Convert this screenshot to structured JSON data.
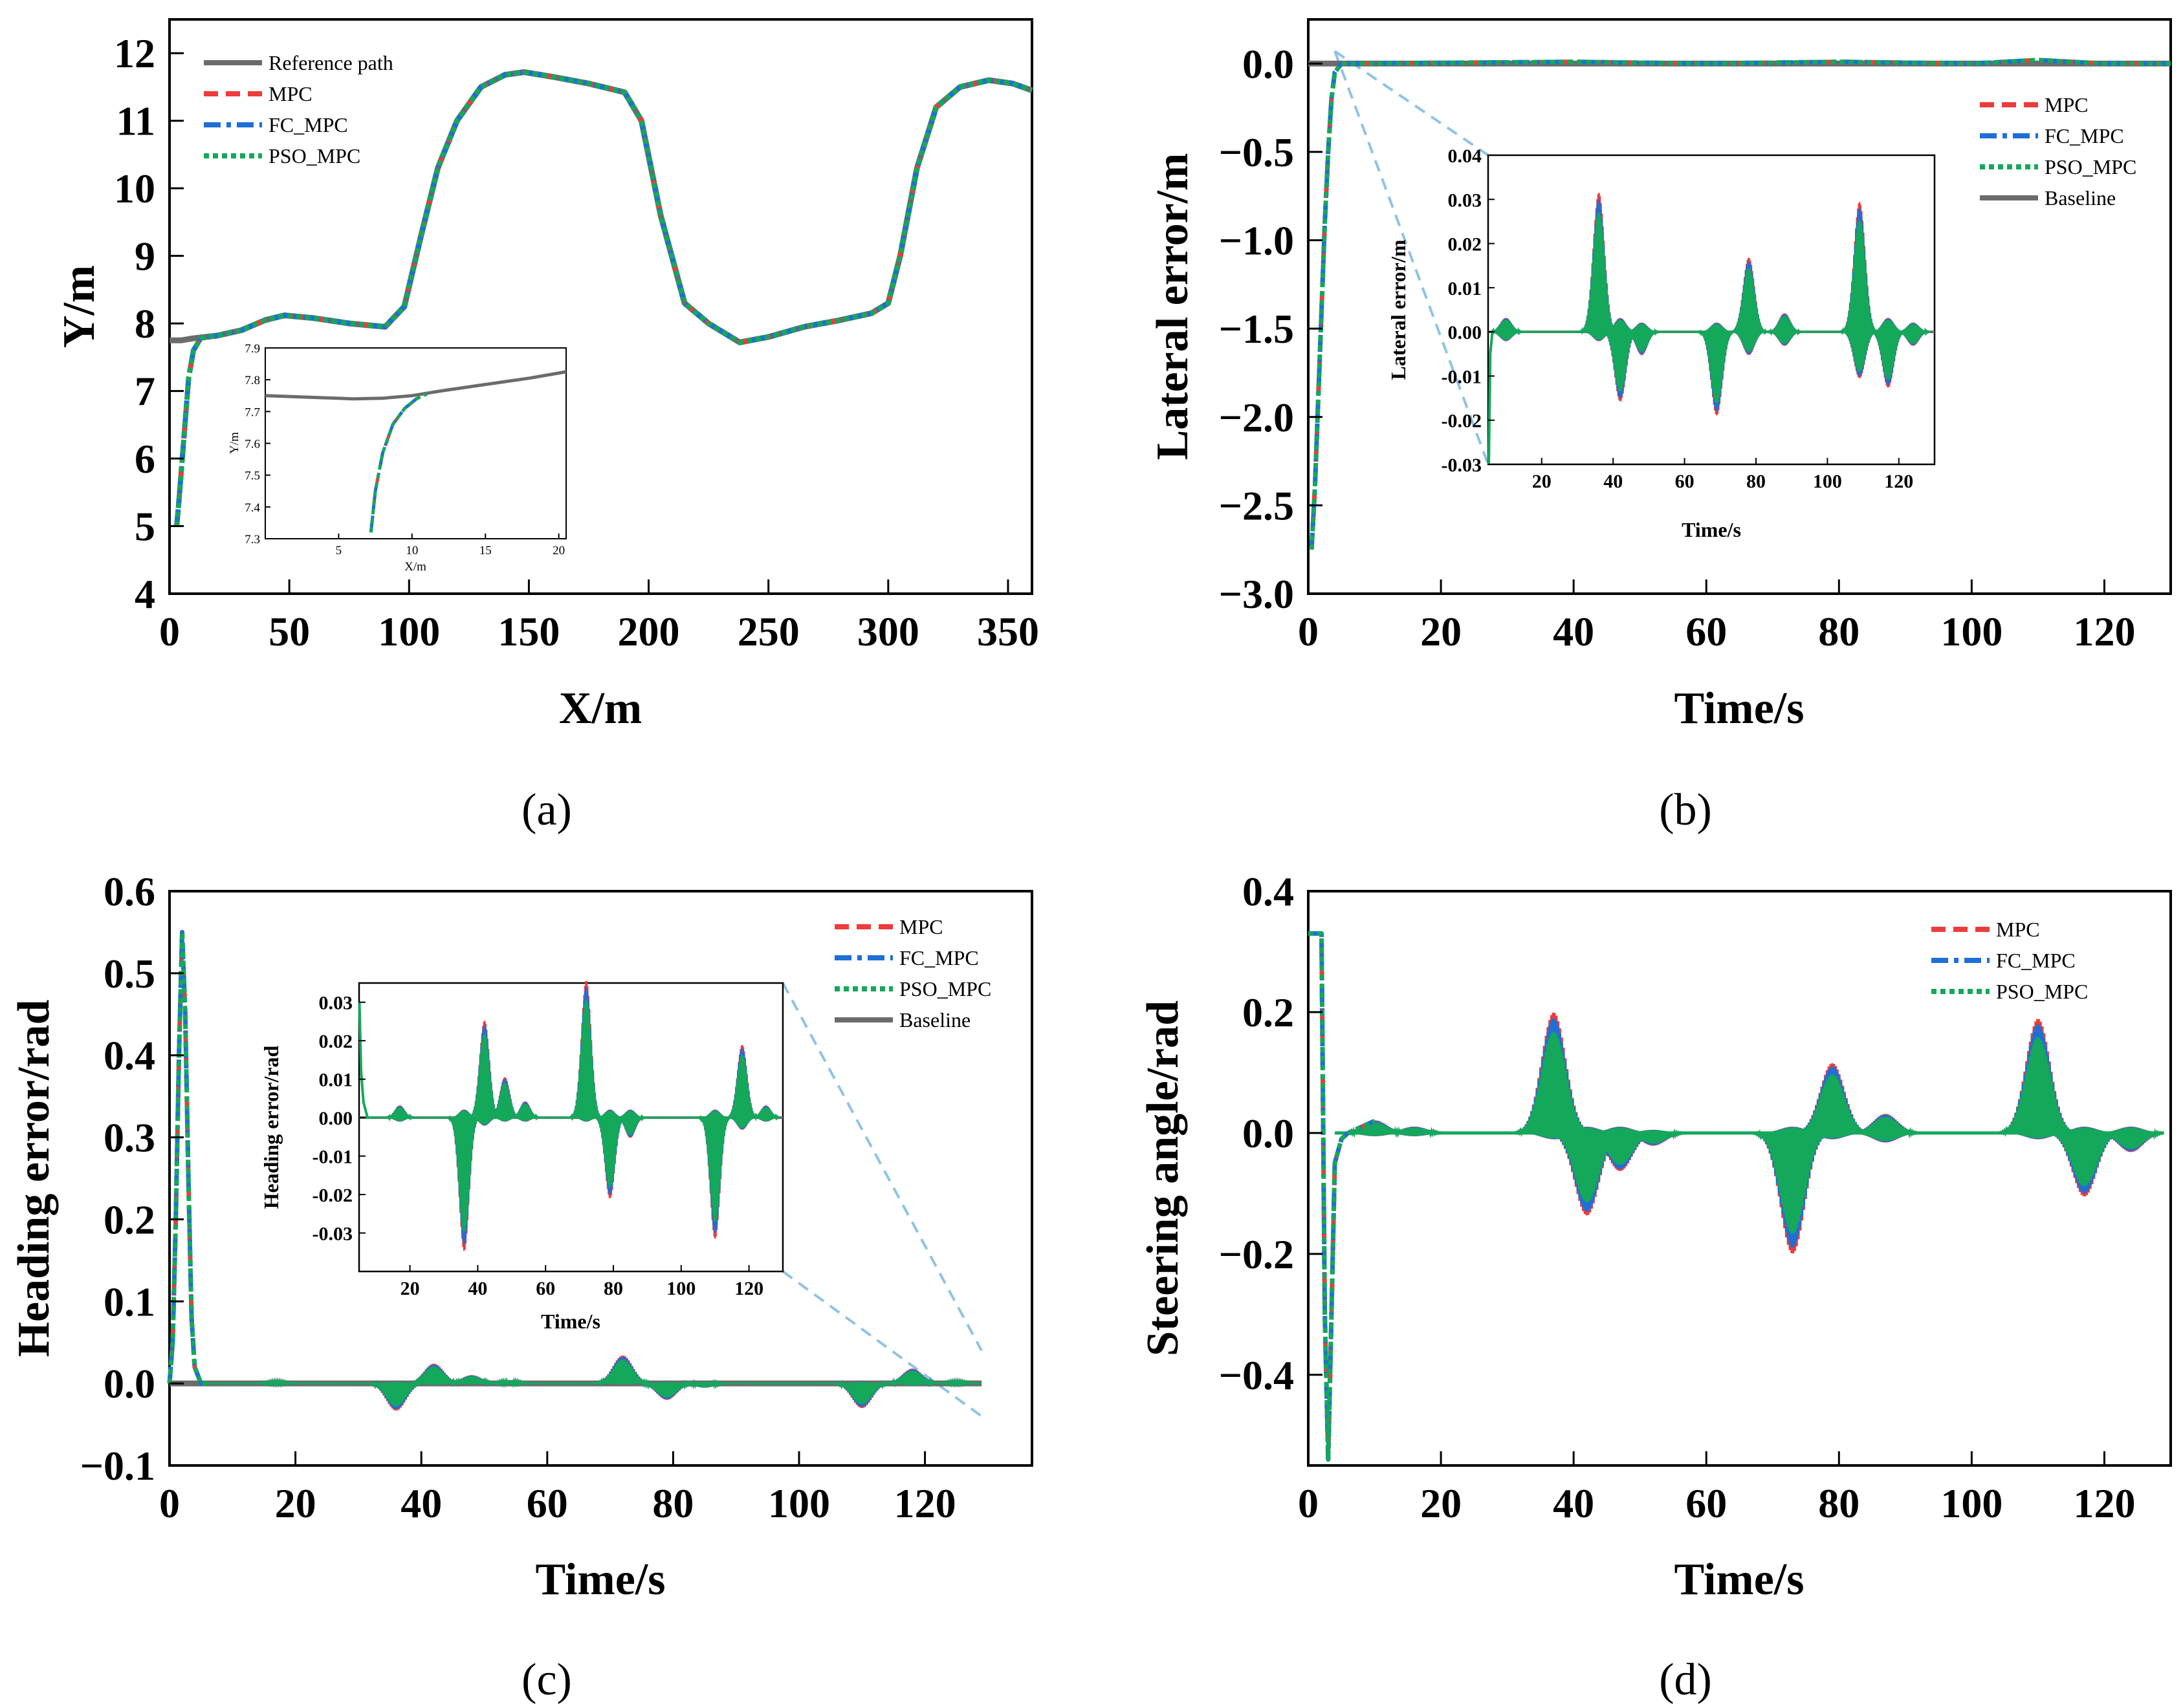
{
  "colors": {
    "reference": "#6b6b6b",
    "mpc": "#ee3b3b",
    "fc_mpc": "#1f6fd6",
    "pso_mpc": "#14a85b",
    "zoom_line": "#8fc3e6"
  },
  "panel_labels": [
    "(a)",
    "(b)",
    "(c)",
    "(d)"
  ],
  "chart_data": [
    {
      "type": "line",
      "id": "a",
      "xlabel": "X/m",
      "ylabel": "Y/m",
      "xlim": [
        0,
        360
      ],
      "ylim": [
        4,
        12.5
      ],
      "xticks": [
        0,
        50,
        100,
        150,
        200,
        250,
        300,
        350
      ],
      "xtick_labels": [
        "0",
        "50",
        "100",
        "150",
        "200",
        "250",
        "300",
        "350"
      ],
      "yticks": [
        4,
        5,
        6,
        7,
        8,
        9,
        10,
        11,
        12
      ],
      "ytick_labels": [
        "4",
        "5",
        "6",
        "7",
        "8",
        "9",
        "10",
        "11",
        "12"
      ],
      "legend": [
        "Reference path",
        "MPC",
        "FC_MPC",
        "PSO_MPC"
      ],
      "legend_position": "top-left",
      "series": [
        {
          "name": "Reference path",
          "x": [
            0,
            5,
            10,
            20,
            30,
            40,
            48,
            60,
            75,
            90,
            98,
            105,
            112,
            120,
            130,
            140,
            148,
            160,
            175,
            190,
            197,
            205,
            215,
            225,
            238,
            250,
            265,
            280,
            293,
            300,
            305,
            312,
            320,
            330,
            342,
            352,
            360
          ],
          "y": [
            7.75,
            7.75,
            7.78,
            7.82,
            7.9,
            8.05,
            8.12,
            8.08,
            8.0,
            7.95,
            8.25,
            9.3,
            10.3,
            11.0,
            11.5,
            11.68,
            11.72,
            11.65,
            11.55,
            11.42,
            11.0,
            9.6,
            8.3,
            8.0,
            7.72,
            7.8,
            7.95,
            8.05,
            8.15,
            8.3,
            9.0,
            10.3,
            11.2,
            11.5,
            11.6,
            11.55,
            11.45
          ]
        },
        {
          "name": "MPC",
          "x": [
            3,
            4,
            6,
            8,
            10,
            13,
            20,
            30,
            40,
            48,
            60,
            75,
            90,
            98,
            105,
            112,
            120,
            130,
            140,
            148,
            160,
            175,
            190,
            197,
            205,
            215,
            225,
            238,
            250,
            265,
            280,
            293,
            300,
            305,
            312,
            320,
            330,
            342,
            352,
            360
          ],
          "y": [
            5.0,
            5.4,
            6.3,
            7.2,
            7.6,
            7.78,
            7.82,
            7.9,
            8.05,
            8.12,
            8.08,
            8.0,
            7.95,
            8.25,
            9.3,
            10.3,
            11.0,
            11.5,
            11.68,
            11.72,
            11.65,
            11.55,
            11.42,
            11.0,
            9.6,
            8.3,
            8.0,
            7.72,
            7.8,
            7.95,
            8.05,
            8.15,
            8.3,
            9.0,
            10.3,
            11.2,
            11.5,
            11.6,
            11.55,
            11.45
          ]
        }
      ],
      "inset": {
        "xlabel": "X/m",
        "ylabel": "Y/m",
        "xlim": [
          0,
          20.5
        ],
        "ylim": [
          7.3,
          7.9
        ],
        "xticks": [
          5,
          10,
          15,
          20
        ],
        "xtick_labels": [
          "5",
          "10",
          "15",
          "20"
        ],
        "yticks": [
          7.3,
          7.4,
          7.5,
          7.6,
          7.7,
          7.8,
          7.9
        ],
        "ytick_labels": [
          "7.3",
          "7.4",
          "7.5",
          "7.6",
          "7.7",
          "7.8",
          "7.9"
        ],
        "reference": {
          "x": [
            0,
            3,
            6,
            8,
            10,
            12,
            15,
            18,
            20.5
          ],
          "y": [
            7.75,
            7.745,
            7.74,
            7.742,
            7.75,
            7.765,
            7.785,
            7.805,
            7.825
          ]
        },
        "tracked": {
          "x": [
            7.2,
            7.5,
            8.0,
            8.7,
            9.5,
            10.3,
            11.0
          ],
          "y": [
            7.32,
            7.45,
            7.57,
            7.66,
            7.71,
            7.74,
            7.755
          ]
        }
      }
    },
    {
      "type": "line",
      "id": "b",
      "xlabel": "Time/s",
      "ylabel": "Lateral error/m",
      "xlim": [
        0,
        130
      ],
      "ylim": [
        -3.0,
        0.25
      ],
      "xticks": [
        0,
        20,
        40,
        60,
        80,
        100,
        120
      ],
      "xtick_labels": [
        "0",
        "20",
        "40",
        "60",
        "80",
        "100",
        "120"
      ],
      "yticks": [
        -3.0,
        -2.5,
        -2.0,
        -1.5,
        -1.0,
        -0.5,
        0.0
      ],
      "ytick_labels": [
        "−3.0",
        "−2.5",
        "−2.0",
        "−1.5",
        "−1.0",
        "−0.5",
        "0.0"
      ],
      "legend": [
        "MPC",
        "FC_MPC",
        "PSO_MPC",
        "Baseline"
      ],
      "legend_position": "right",
      "series": [
        {
          "name": "PSO_MPC",
          "x": [
            0.5,
            1,
            1.5,
            2,
            2.5,
            3,
            3.5,
            4,
            5,
            6,
            40,
            60,
            80,
            100,
            110,
            120,
            130
          ],
          "y": [
            -2.75,
            -2.4,
            -1.9,
            -1.4,
            -0.9,
            -0.5,
            -0.2,
            -0.05,
            0.0,
            0.0,
            0.01,
            0.0,
            0.01,
            0.0,
            0.02,
            0.0,
            0.0
          ]
        },
        {
          "name": "Baseline",
          "x": [
            0,
            130
          ],
          "y": [
            0,
            0
          ]
        }
      ],
      "inset": {
        "xlabel": "Time/s",
        "ylabel": "Lateral error/m",
        "xlim": [
          5,
          130
        ],
        "ylim": [
          -0.03,
          0.04
        ],
        "xticks": [
          20,
          40,
          60,
          80,
          100,
          120
        ],
        "xtick_labels": [
          "20",
          "40",
          "60",
          "80",
          "100",
          "120"
        ],
        "yticks": [
          -0.03,
          -0.02,
          -0.01,
          0.0,
          0.01,
          0.02,
          0.03,
          0.04
        ],
        "ytick_labels": [
          "-0.03",
          "-0.02",
          "-0.01",
          "0.00",
          "0.01",
          "0.02",
          "0.03",
          "0.04"
        ],
        "events": [
          [
            10,
            0.003,
            -0.002
          ],
          [
            36,
            0.03,
            -0.002
          ],
          [
            42,
            0.003,
            -0.015
          ],
          [
            48,
            0.002,
            -0.005
          ],
          [
            69,
            0.002,
            -0.018
          ],
          [
            78,
            0.016,
            -0.005
          ],
          [
            88,
            0.004,
            -0.003
          ],
          [
            109,
            0.028,
            -0.01
          ],
          [
            117,
            0.003,
            -0.012
          ],
          [
            124,
            0.002,
            -0.003
          ]
        ]
      }
    },
    {
      "type": "line",
      "id": "c",
      "xlabel": "Time/s",
      "ylabel": "Heading error/rad",
      "xlim": [
        0,
        137
      ],
      "ylim": [
        -0.1,
        0.6
      ],
      "xticks": [
        0,
        20,
        40,
        60,
        80,
        100,
        120
      ],
      "xtick_labels": [
        "0",
        "20",
        "40",
        "60",
        "80",
        "100",
        "120"
      ],
      "yticks": [
        -0.1,
        0.0,
        0.1,
        0.2,
        0.3,
        0.4,
        0.5,
        0.6
      ],
      "ytick_labels": [
        "−0.1",
        "0.0",
        "0.1",
        "0.2",
        "0.3",
        "0.4",
        "0.5",
        "0.6"
      ],
      "legend": [
        "MPC",
        "FC_MPC",
        "PSO_MPC",
        "Baseline"
      ],
      "legend_position": "top-right",
      "series": [
        {
          "name": "PSO_MPC",
          "x": [
            0,
            0.5,
            1,
            1.5,
            2,
            2.5,
            3,
            3.5,
            4,
            5,
            6,
            10,
            36,
            42,
            48,
            72,
            80,
            110,
            118,
            125,
            129
          ],
          "y": [
            0.0,
            0.05,
            0.2,
            0.4,
            0.55,
            0.45,
            0.25,
            0.08,
            0.02,
            0.0,
            0.0,
            -0.005,
            -0.035,
            0.025,
            0.01,
            0.035,
            -0.02,
            -0.03,
            0.02,
            0.005,
            0.0
          ]
        },
        {
          "name": "Baseline",
          "x": [
            0,
            129
          ],
          "y": [
            0,
            0
          ]
        }
      ],
      "inset": {
        "xlabel": "Time/s",
        "ylabel": "Heading error/rad",
        "xlim": [
          5,
          130
        ],
        "ylim": [
          -0.04,
          0.035
        ],
        "xticks": [
          20,
          40,
          60,
          80,
          100,
          120
        ],
        "xtick_labels": [
          "20",
          "40",
          "60",
          "80",
          "100",
          "120"
        ],
        "yticks": [
          -0.03,
          -0.02,
          -0.01,
          0.0,
          0.01,
          0.02,
          0.03
        ],
        "ytick_labels": [
          "-0.03",
          "-0.02",
          "-0.01",
          "0.00",
          "0.01",
          "0.02",
          "0.03"
        ],
        "events": [
          [
            17,
            0.003,
            -0.001
          ],
          [
            36,
            0.002,
            -0.033
          ],
          [
            42,
            0.024,
            -0.002
          ],
          [
            48,
            0.01,
            -0.001
          ],
          [
            54,
            0.004,
            -0.001
          ],
          [
            72,
            0.034,
            -0.001
          ],
          [
            79,
            0.002,
            -0.02
          ],
          [
            85,
            0.002,
            -0.005
          ],
          [
            110,
            0.002,
            -0.03
          ],
          [
            118,
            0.018,
            -0.003
          ],
          [
            125,
            0.003,
            -0.001
          ]
        ]
      }
    },
    {
      "type": "line",
      "id": "d",
      "xlabel": "Time/s",
      "ylabel": "Steering angle/rad",
      "xlim": [
        0,
        130
      ],
      "ylim": [
        -0.55,
        0.4
      ],
      "xticks": [
        0,
        20,
        40,
        60,
        80,
        100,
        120
      ],
      "xtick_labels": [
        "0",
        "20",
        "40",
        "60",
        "80",
        "100",
        "120"
      ],
      "yticks": [
        -0.4,
        -0.2,
        0.0,
        0.2,
        0.4
      ],
      "ytick_labels": [
        "−0.4",
        "−0.2",
        "0.0",
        "0.2",
        "0.4"
      ],
      "legend": [
        "MPC",
        "FC_MPC",
        "PSO_MPC"
      ],
      "legend_position": "top-right",
      "series": [
        {
          "name": "PSO_MPC",
          "x": [
            0,
            2,
            2.5,
            3,
            3.5,
            4,
            5,
            6,
            10,
            20,
            37,
            42,
            48,
            73,
            79,
            88,
            110,
            118,
            125,
            130
          ],
          "y": [
            0.33,
            0.33,
            -0.3,
            -0.54,
            -0.3,
            -0.05,
            -0.01,
            0.0,
            0.02,
            0.0,
            0.19,
            -0.13,
            -0.05,
            -0.19,
            0.11,
            0.03,
            0.18,
            -0.09,
            -0.02,
            0.0
          ]
        }
      ],
      "events": [
        [
          10,
          0.02,
          -0.005
        ],
        [
          16,
          0.01,
          -0.005
        ],
        [
          37,
          0.19,
          -0.01
        ],
        [
          42,
          0.01,
          -0.13
        ],
        [
          47,
          0.01,
          -0.06
        ],
        [
          52,
          0.005,
          -0.02
        ],
        [
          73,
          0.01,
          -0.19
        ],
        [
          79,
          0.11,
          -0.01
        ],
        [
          87,
          0.03,
          -0.015
        ],
        [
          110,
          0.18,
          -0.01
        ],
        [
          117,
          0.01,
          -0.1
        ],
        [
          124,
          0.01,
          -0.03
        ]
      ]
    }
  ]
}
